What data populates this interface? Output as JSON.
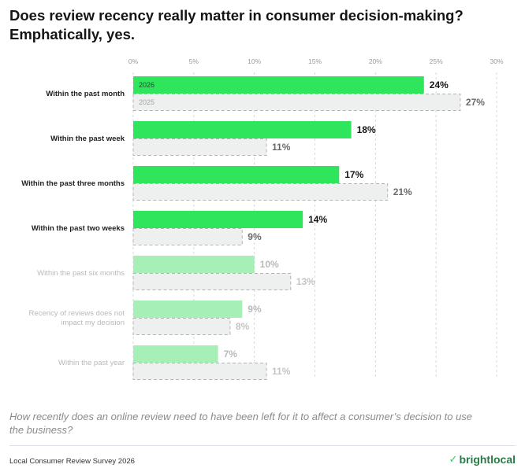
{
  "title": "Does review recency really matter in consumer decision-making? Emphatically, yes.",
  "question": "How recently does an online review need to have been left for it to affect a consumer’s decision to use the business?",
  "source": "Local Consumer Review Survey 2026",
  "brand": "brightlocal",
  "colors": {
    "bar_2026": "#2ee55c",
    "bar_2026_faded": "#a6f0b8",
    "bar_2025": "#eeefef",
    "bar_2025_border": "#b4b4b4",
    "grid": "#d9d9d9"
  },
  "chart_data": {
    "type": "bar",
    "orientation": "horizontal",
    "categories": [
      "Within the past month",
      "Within the past week",
      "Within the past three months",
      "Within the past two weeks",
      "Within the past six months",
      "Recency of reviews does not impact my decision",
      "Within the past year"
    ],
    "category_label_lines": [
      [
        "Within the past month"
      ],
      [
        "Within the past week"
      ],
      [
        "Within the past three months"
      ],
      [
        "Within the past two weeks"
      ],
      [
        "Within the past six months"
      ],
      [
        "Recency of reviews does not",
        "impact my decision"
      ],
      [
        "Within the past year"
      ]
    ],
    "highlighted": [
      true,
      true,
      true,
      true,
      false,
      false,
      false
    ],
    "series": [
      {
        "name": "2026",
        "values": [
          24,
          18,
          17,
          14,
          10,
          9,
          7
        ]
      },
      {
        "name": "2025",
        "values": [
          27,
          11,
          21,
          9,
          13,
          8,
          11
        ]
      }
    ],
    "value_format": "%",
    "xlim": [
      0,
      30
    ],
    "xticks": [
      0,
      5,
      10,
      15,
      20,
      25,
      30
    ],
    "xtick_labels": [
      "0%",
      "5%",
      "10%",
      "15%",
      "20%",
      "25%",
      "30%"
    ],
    "grid": true,
    "legend": "inline labels inside first bar pair"
  }
}
